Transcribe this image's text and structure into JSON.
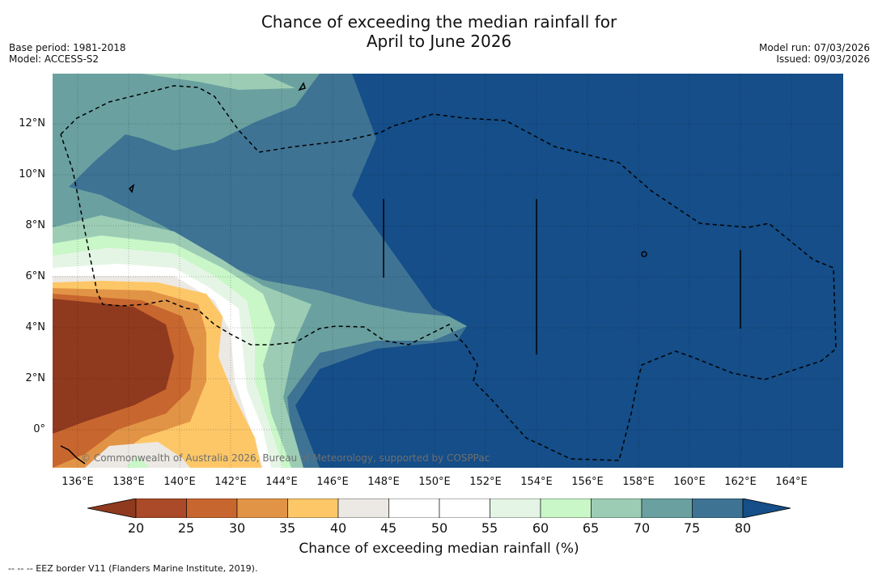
{
  "title_line1": "Chance of exceeding the median rainfall for",
  "title_line2": "April to June 2026",
  "base_period": "Base period: 1981-2018",
  "model": "Model: ACCESS-S2",
  "model_run": "Model run: 07/03/2026",
  "issued": "Issued: 09/03/2026",
  "copyright": "© Commonwealth of Australia 2026, Bureau of Meteorology, supported by COSPPac",
  "lat_labels": [
    "12°N",
    "10°N",
    "8°N",
    "6°N",
    "4°N",
    "2°N",
    "0°"
  ],
  "lon_labels": [
    "136°E",
    "138°E",
    "140°E",
    "142°E",
    "144°E",
    "146°E",
    "148°E",
    "150°E",
    "152°E",
    "154°E",
    "156°E",
    "158°E",
    "160°E",
    "162°E",
    "164°E"
  ],
  "colorbar": {
    "ticks": [
      "20",
      "25",
      "30",
      "35",
      "40",
      "45",
      "50",
      "55",
      "60",
      "65",
      "70",
      "75",
      "80"
    ],
    "colors": [
      "#8f3a1e",
      "#aa4a28",
      "#c8662f",
      "#e29446",
      "#fdc768",
      "#ece9e4",
      "#ffffff",
      "#ffffff",
      "#e5f5e5",
      "#c9f7c8",
      "#9ccdb4",
      "#6aa1a0",
      "#3e7394",
      "#154e88"
    ],
    "label": "Chance of exceeding median rainfall (%)"
  },
  "legend_footer": "-- -- -- EEZ border V11 (Flanders Marine Institute, 2019)."
}
